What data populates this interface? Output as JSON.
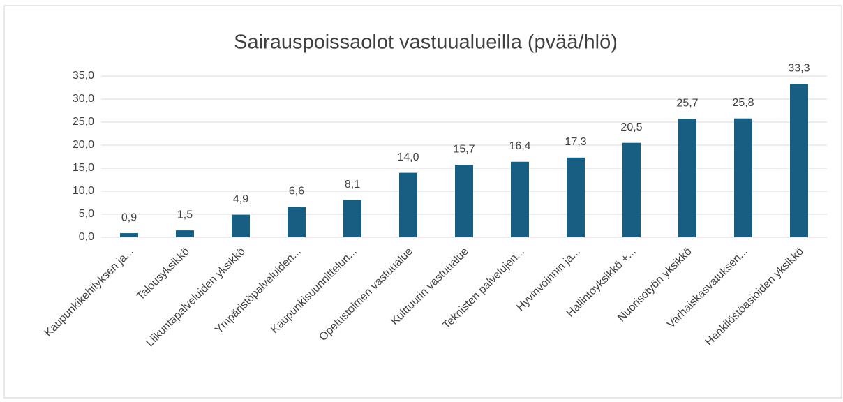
{
  "chart_data": {
    "type": "bar",
    "title": "Sairauspoissaolot vastuualueilla (pvää/hlö)",
    "categories": [
      "Kaupunkikehityksen ja...",
      "Talousyksikkö",
      "Liikuntapalveluiden yksikkö",
      "Ympäristöpalveluiden...",
      "Kaupunkisuunnittelun...",
      "Opetustoimen vastuualue",
      "Kulttuurin vastuualue",
      "Teknisten palvelujen...",
      "Hyvinvoinnin ja...",
      "Hallintoyksikkö +...",
      "Nuorisotyön yksikkö",
      "Varhaiskasvatuksen...",
      "Henkilöstöasioiden yksikkö"
    ],
    "values": [
      0.9,
      1.5,
      4.9,
      6.6,
      8.1,
      14.0,
      15.7,
      16.4,
      17.3,
      20.5,
      25.7,
      25.8,
      33.3
    ],
    "value_labels": [
      "0,9",
      "1,5",
      "4,9",
      "6,6",
      "8,1",
      "14,0",
      "15,7",
      "16,4",
      "17,3",
      "20,5",
      "25,7",
      "25,8",
      "33,3"
    ],
    "color": "#175e82",
    "ylim": [
      0,
      35
    ],
    "yticks": [
      {
        "value": 0,
        "label": "0,0"
      },
      {
        "value": 5,
        "label": "5,0"
      },
      {
        "value": 10,
        "label": "10,0"
      },
      {
        "value": 15,
        "label": "15,0"
      },
      {
        "value": 20,
        "label": "20,0"
      },
      {
        "value": 25,
        "label": "25,0"
      },
      {
        "value": 30,
        "label": "30,0"
      },
      {
        "value": 35,
        "label": "35,0"
      }
    ],
    "grid": true
  }
}
